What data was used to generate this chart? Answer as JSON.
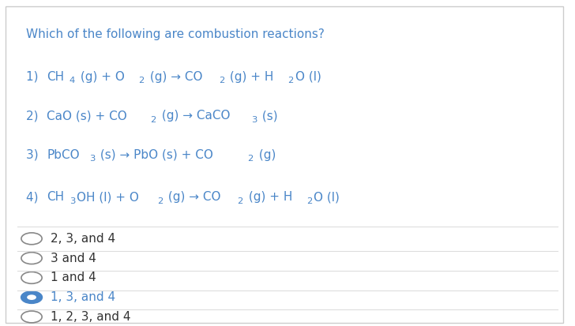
{
  "bg_color": "#ffffff",
  "border_color": "#cccccc",
  "text_color": "#4a86c8",
  "question": "Which of the following are combustion reactions?",
  "reactions": [
    {
      "label": "1) ",
      "parts": [
        {
          "text": "CH",
          "type": "normal"
        },
        {
          "text": "4",
          "type": "sub"
        },
        {
          "text": " (g) + O",
          "type": "normal"
        },
        {
          "text": "2",
          "type": "sub"
        },
        {
          "text": " (g) → CO",
          "type": "normal"
        },
        {
          "text": "2",
          "type": "sub"
        },
        {
          "text": " (g) + H",
          "type": "normal"
        },
        {
          "text": "2",
          "type": "sub"
        },
        {
          "text": "O (l)",
          "type": "normal"
        }
      ]
    },
    {
      "label": "2) ",
      "parts": [
        {
          "text": "CaO (s) + CO",
          "type": "normal"
        },
        {
          "text": "2",
          "type": "sub"
        },
        {
          "text": " (g) → CaCO",
          "type": "normal"
        },
        {
          "text": "3",
          "type": "sub"
        },
        {
          "text": " (s)",
          "type": "normal"
        }
      ]
    },
    {
      "label": "3) ",
      "parts": [
        {
          "text": "PbCO",
          "type": "normal"
        },
        {
          "text": "3",
          "type": "sub"
        },
        {
          "text": " (s) → PbO (s) + CO",
          "type": "normal"
        },
        {
          "text": "2",
          "type": "sub"
        },
        {
          "text": " (g)",
          "type": "normal"
        }
      ]
    },
    {
      "label": "4) ",
      "parts": [
        {
          "text": "CH",
          "type": "normal"
        },
        {
          "text": "3",
          "type": "sub"
        },
        {
          "text": "OH (l) + O",
          "type": "normal"
        },
        {
          "text": "2",
          "type": "sub"
        },
        {
          "text": " (g) → CO",
          "type": "normal"
        },
        {
          "text": "2",
          "type": "sub"
        },
        {
          "text": " (g) + H",
          "type": "normal"
        },
        {
          "text": "2",
          "type": "sub"
        },
        {
          "text": "O (l)",
          "type": "normal"
        }
      ]
    }
  ],
  "options": [
    {
      "text": "2, 3, and 4",
      "selected": false
    },
    {
      "text": "3 and 4",
      "selected": false
    },
    {
      "text": "1 and 4",
      "selected": false
    },
    {
      "text": "1, 3, and 4",
      "selected": true
    },
    {
      "text": "1, 2, 3, and 4",
      "selected": false
    }
  ],
  "separator_color": "#dddddd",
  "selected_color": "#4a86c8",
  "unselected_color": "#888888"
}
